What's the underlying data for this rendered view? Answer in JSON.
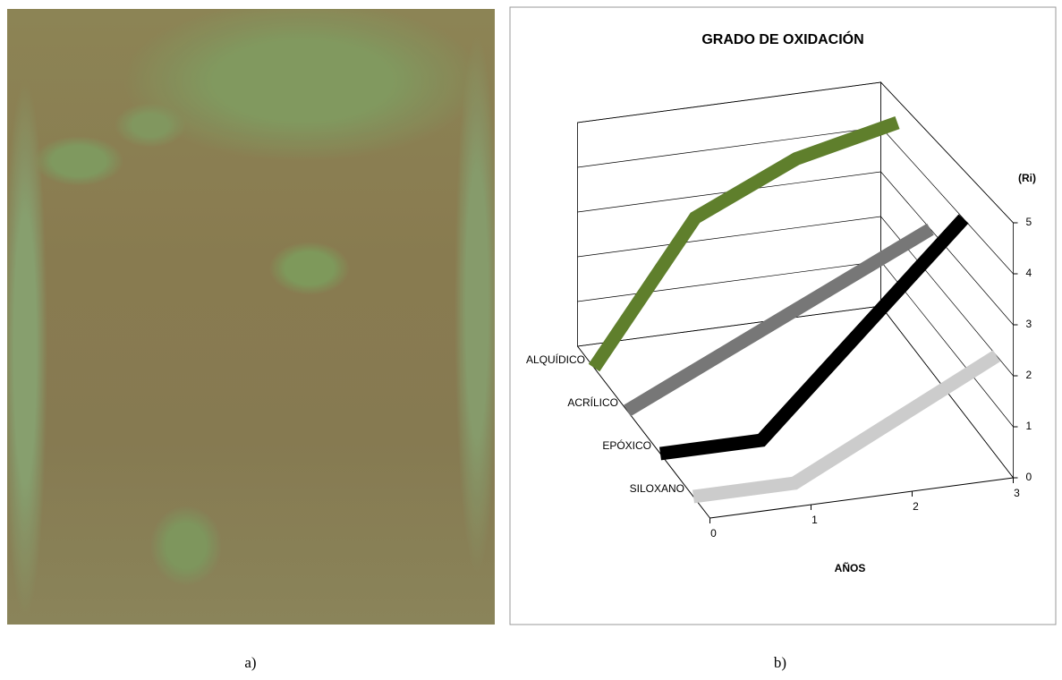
{
  "captions": [
    "a)",
    "b)"
  ],
  "chart_data": {
    "type": "line",
    "title": "GRADO DE OXIDACIÓN",
    "y_label": "(Ri)",
    "x_label": "AÑOS",
    "x": [
      0,
      1,
      2,
      3
    ],
    "xlim": [
      0,
      3
    ],
    "xticks": [
      0,
      1,
      2,
      3
    ],
    "ylim": [
      0,
      5
    ],
    "yticks": [
      0,
      1,
      2,
      3,
      4,
      5
    ],
    "grid": true,
    "series": [
      {
        "name": "ALQUÍDICO",
        "color": "#5f7f2c",
        "values": [
          0,
          3,
          4,
          4.5
        ]
      },
      {
        "name": "ACRÍLICO",
        "color": "#777777",
        "values": [
          0,
          1,
          2,
          3
        ]
      },
      {
        "name": "EPÓXICO",
        "color": "#000000",
        "values": [
          0,
          0,
          2,
          4
        ]
      },
      {
        "name": "SILOXANO",
        "color": "#cccccc",
        "values": [
          0,
          0,
          1,
          2
        ]
      }
    ]
  }
}
